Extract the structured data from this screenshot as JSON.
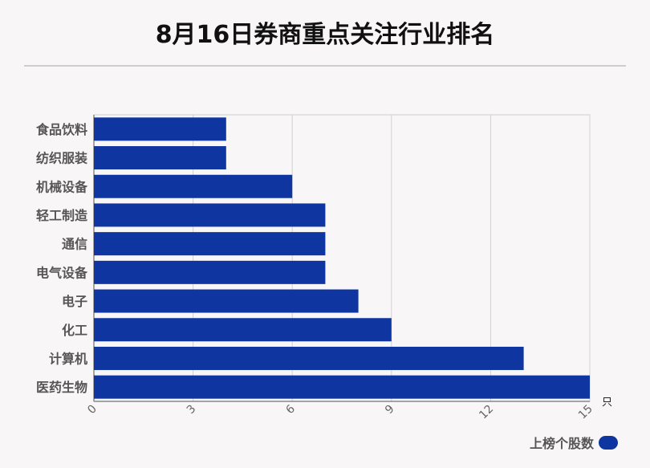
{
  "chart_data": {
    "type": "bar",
    "orientation": "horizontal",
    "title": "8月16日券商重点关注行业排名",
    "categories": [
      "食品饮料",
      "纺织服装",
      "机械设备",
      "轻工制造",
      "通信",
      "电气设备",
      "电子",
      "化工",
      "计算机",
      "医药生物"
    ],
    "series": [
      {
        "name": "上榜个股数",
        "values": [
          4,
          4,
          6,
          7,
          7,
          7,
          8,
          9,
          13,
          15
        ]
      }
    ],
    "xlim": [
      0,
      15
    ],
    "xticks": [
      "0",
      "3",
      "6",
      "9",
      "12",
      "15"
    ],
    "xunit": "只",
    "grid": true,
    "legend_position": "bottom-right",
    "bar_color": "#0e35a0"
  }
}
